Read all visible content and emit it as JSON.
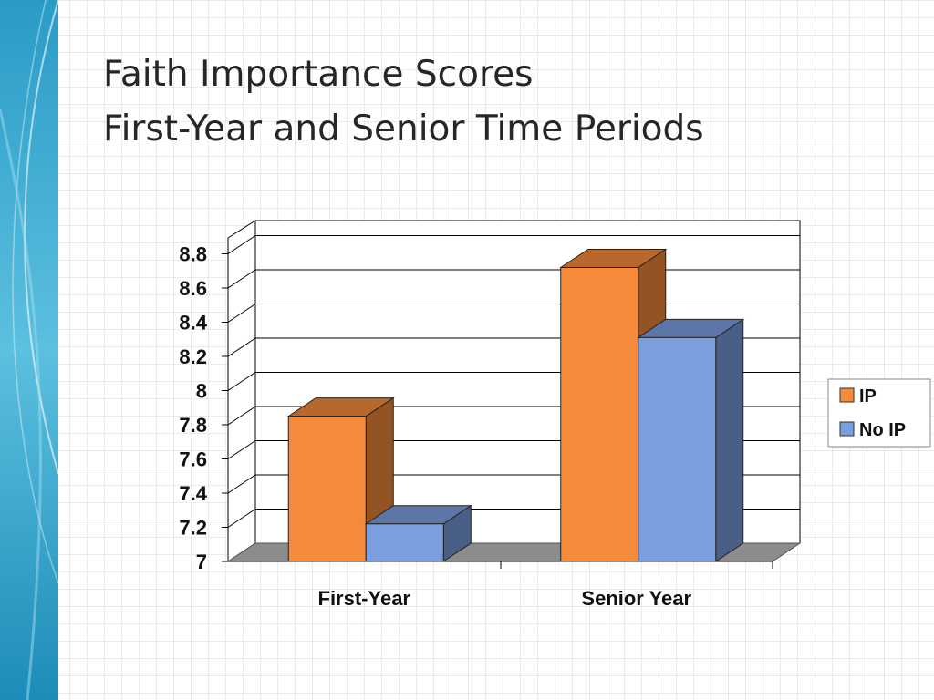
{
  "slide": {
    "title_line1": "Faith Importance Scores",
    "title_line2": "First-Year and Senior Time Periods"
  },
  "chart_data": {
    "type": "bar",
    "categories": [
      "First-Year",
      "Senior Year"
    ],
    "series": [
      {
        "name": "IP",
        "values": [
          7.85,
          8.72
        ],
        "color": "#f58a3a"
      },
      {
        "name": "No IP",
        "values": [
          7.22,
          8.31
        ],
        "color": "#7a9ede"
      }
    ],
    "yticks": [
      "7",
      "7.2",
      "7.4",
      "7.6",
      "7.8",
      "8",
      "8.2",
      "8.4",
      "8.6",
      "8.8"
    ],
    "ylim": [
      7,
      9
    ],
    "grid": true,
    "legend": "right",
    "style": "3d"
  }
}
